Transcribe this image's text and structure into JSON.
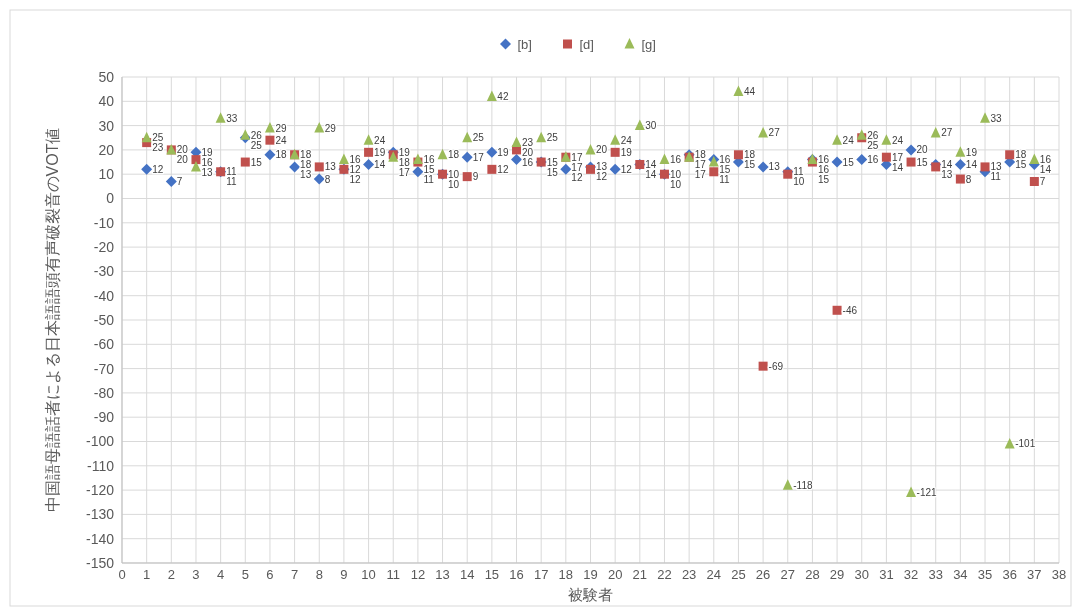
{
  "chart_data": {
    "type": "scatter",
    "xlabel": "被験者",
    "ylabel": "中国語母語話者による日本語語頭有声破裂音のVOT値",
    "x": [
      1,
      2,
      3,
      4,
      5,
      6,
      7,
      8,
      9,
      10,
      11,
      12,
      13,
      14,
      15,
      16,
      17,
      18,
      19,
      20,
      21,
      22,
      23,
      24,
      25,
      26,
      27,
      28,
      29,
      30,
      31,
      32,
      33,
      34,
      35,
      36,
      37
    ],
    "series": [
      {
        "name": "[b]",
        "color": "#4472c4",
        "marker": "diamond",
        "values": [
          12,
          7,
          19,
          11,
          25,
          18,
          13,
          8,
          12,
          14,
          19,
          11,
          10,
          17,
          19,
          16,
          15,
          12,
          13,
          12,
          14,
          10,
          18,
          16,
          15,
          13,
          11,
          16,
          15,
          16,
          14,
          20,
          14,
          14,
          11,
          15,
          14
        ]
      },
      {
        "name": "[d]",
        "color": "#c0504d",
        "marker": "square",
        "values": [
          23,
          20,
          16,
          11,
          15,
          24,
          18,
          13,
          12,
          19,
          18,
          15,
          10,
          9,
          12,
          20,
          15,
          17,
          12,
          19,
          14,
          10,
          17,
          11,
          18,
          -69,
          10,
          15,
          -46,
          25,
          17,
          15,
          13,
          8,
          13,
          18,
          7
        ]
      },
      {
        "name": "[g]",
        "color": "#9bbb59",
        "marker": "triangle",
        "values": [
          25,
          20,
          13,
          33,
          26,
          29,
          18,
          29,
          16,
          24,
          17,
          16,
          18,
          25,
          42,
          23,
          25,
          17,
          20,
          24,
          30,
          16,
          17,
          15,
          44,
          27,
          -118,
          16,
          24,
          26,
          24,
          -121,
          27,
          19,
          33,
          -101,
          16
        ]
      }
    ],
    "xlim": [
      0,
      38
    ],
    "xticks": [
      0,
      1,
      2,
      3,
      4,
      5,
      6,
      7,
      8,
      9,
      10,
      11,
      12,
      13,
      14,
      15,
      16,
      17,
      18,
      19,
      20,
      21,
      22,
      23,
      24,
      25,
      26,
      27,
      28,
      29,
      30,
      31,
      32,
      33,
      34,
      35,
      36,
      37,
      38
    ],
    "ylim": [
      -150,
      50
    ],
    "yticks": [
      -150,
      -140,
      -130,
      -120,
      -110,
      -100,
      -90,
      -80,
      -70,
      -60,
      -50,
      -40,
      -30,
      -20,
      -10,
      0,
      10,
      20,
      30,
      40,
      50
    ],
    "grid": true,
    "legend": "top",
    "data_labels": true
  }
}
